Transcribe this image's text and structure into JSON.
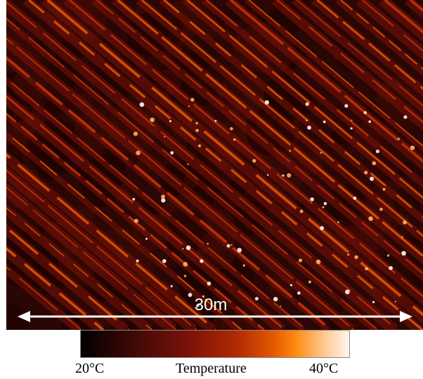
{
  "image": {
    "description_icon": "thermal-field-icon",
    "palette": {
      "cold": "#000000",
      "mid": "#7a1208",
      "warm": "#e45a00",
      "hot": "#fff6ee",
      "stripe": "#c83408"
    }
  },
  "scale_bar": {
    "label": "30m"
  },
  "colorbar": {
    "min_label": "20°C",
    "title": "Temperature",
    "max_label": "40°C"
  }
}
